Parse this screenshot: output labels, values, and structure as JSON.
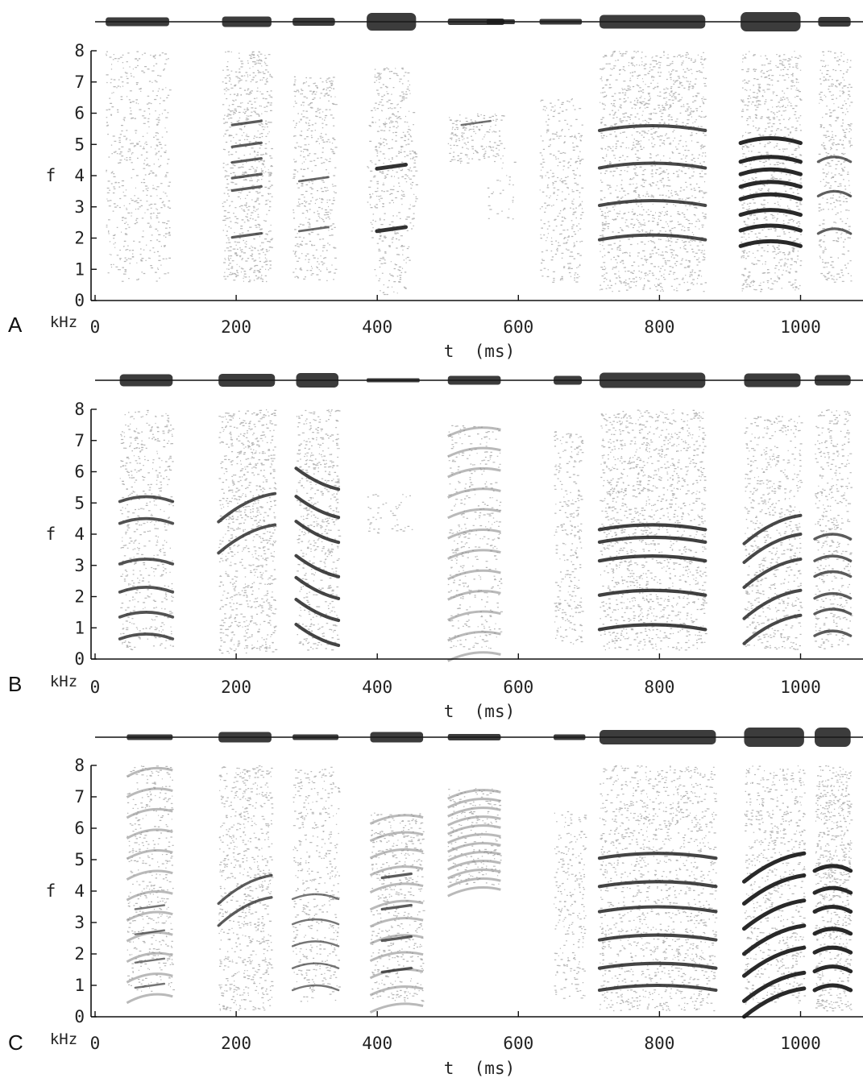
{
  "chart_data": [
    {
      "type": "heatmap",
      "panel_label": "A",
      "xlabel": "t  (ms)",
      "ylabel": "f",
      "yunit": "kHz",
      "xlim": [
        0,
        1100
      ],
      "ylim": [
        0,
        8
      ],
      "xticks": [
        0,
        200,
        400,
        600,
        800,
        1000
      ],
      "yticks": [
        0,
        1,
        2,
        3,
        4,
        5,
        6,
        7,
        8
      ],
      "syllables": [
        {
          "t0": 15,
          "t1": 105,
          "f0": 0.6,
          "f1": 8.0,
          "density": 0.25,
          "shape": "noise",
          "bands": [],
          "amp": 0.35
        },
        {
          "t0": 180,
          "t1": 250,
          "f0": 0.6,
          "f1": 8.0,
          "density": 0.45,
          "shape": "noise",
          "bands": [
            5.7,
            5.0,
            4.5,
            4.0,
            3.6,
            2.1
          ],
          "amp": 0.45
        },
        {
          "t0": 280,
          "t1": 340,
          "f0": 0.6,
          "f1": 7.2,
          "density": 0.35,
          "shape": "noise",
          "bands": [
            3.9,
            2.3
          ],
          "amp": 0.3
        },
        {
          "t0": 385,
          "t1": 455,
          "f0": 0.2,
          "f1": 7.5,
          "density": 0.35,
          "shape": "click",
          "bands": [
            4.3,
            2.3
          ],
          "amp": 0.9
        },
        {
          "t0": 500,
          "t1": 580,
          "f0": 4.4,
          "f1": 6.0,
          "density": 0.45,
          "shape": "noise",
          "bands": [
            5.7
          ],
          "amp": 0.2
        },
        {
          "t0": 555,
          "t1": 595,
          "f0": 2.6,
          "f1": 4.5,
          "density": 0.12,
          "shape": "noise",
          "bands": [],
          "amp": 0.1
        },
        {
          "t0": 630,
          "t1": 690,
          "f0": 0.6,
          "f1": 6.5,
          "density": 0.3,
          "shape": "noise",
          "bands": [],
          "amp": 0.15
        },
        {
          "t0": 715,
          "t1": 865,
          "f0": 0.3,
          "f1": 8.0,
          "density": 0.4,
          "shape": "harmonic",
          "bands": [
            5.6,
            4.4,
            3.2,
            2.1
          ],
          "amp": 0.65
        },
        {
          "t0": 915,
          "t1": 1000,
          "f0": 0.3,
          "f1": 8.0,
          "density": 0.4,
          "shape": "harmonic",
          "bands": [
            5.2,
            4.6,
            4.2,
            3.8,
            3.4,
            2.9,
            2.4,
            1.9
          ],
          "amp": 1.0
        },
        {
          "t0": 1025,
          "t1": 1071,
          "f0": 0.6,
          "f1": 8.0,
          "density": 0.35,
          "shape": "harmonic",
          "bands": [
            4.6,
            3.5,
            2.3
          ],
          "amp": 0.4
        }
      ]
    },
    {
      "type": "heatmap",
      "panel_label": "B",
      "xlabel": "t  (ms)",
      "ylabel": "f",
      "yunit": "kHz",
      "xlim": [
        0,
        1100
      ],
      "ylim": [
        0,
        8
      ],
      "xticks": [
        0,
        200,
        400,
        600,
        800,
        1000
      ],
      "yticks": [
        0,
        1,
        2,
        3,
        4,
        5,
        6,
        7,
        8
      ],
      "syllables": [
        {
          "t0": 35,
          "t1": 110,
          "f0": 0.3,
          "f1": 8.0,
          "density": 0.3,
          "shape": "harmonic",
          "bands": [
            5.2,
            4.5,
            3.2,
            2.3,
            1.5,
            0.8
          ],
          "amp": 0.55
        },
        {
          "t0": 175,
          "t1": 255,
          "f0": 0.2,
          "f1": 8.0,
          "density": 0.45,
          "shape": "sweep-up",
          "bands": [
            5.3,
            4.3
          ],
          "amp": 0.6
        },
        {
          "t0": 285,
          "t1": 345,
          "f0": 0.3,
          "f1": 8.0,
          "density": 0.4,
          "shape": "sweep-down",
          "bands": [
            5.8,
            4.9,
            4.1,
            3.0,
            2.3,
            1.6,
            0.8
          ],
          "amp": 0.7
        },
        {
          "t0": 385,
          "t1": 460,
          "f0": 4.0,
          "f1": 5.3,
          "density": 0.15,
          "shape": "noise",
          "bands": [],
          "amp": 0.05
        },
        {
          "t0": 500,
          "t1": 575,
          "f0": 0.3,
          "f1": 7.5,
          "density": 0.25,
          "shape": "fan",
          "bands": [],
          "amp": 0.35
        },
        {
          "t0": 650,
          "t1": 690,
          "f0": 0.5,
          "f1": 7.3,
          "density": 0.35,
          "shape": "noise",
          "bands": [],
          "amp": 0.35
        },
        {
          "t0": 715,
          "t1": 865,
          "f0": 0.3,
          "f1": 8.0,
          "density": 0.4,
          "shape": "harmonic",
          "bands": [
            4.3,
            3.9,
            3.3,
            2.2,
            1.1
          ],
          "amp": 0.75
        },
        {
          "t0": 920,
          "t1": 1000,
          "f0": 0.3,
          "f1": 7.8,
          "density": 0.35,
          "shape": "sweep-up",
          "bands": [
            4.6,
            4.0,
            3.2,
            2.2,
            1.4
          ],
          "amp": 0.65
        },
        {
          "t0": 1020,
          "t1": 1071,
          "f0": 0.3,
          "f1": 8.0,
          "density": 0.35,
          "shape": "harmonic",
          "bands": [
            4.0,
            3.3,
            2.8,
            2.1,
            1.6,
            0.9
          ],
          "amp": 0.45
        }
      ]
    },
    {
      "type": "heatmap",
      "panel_label": "C",
      "xlabel": "t  (ms)",
      "ylabel": "f",
      "yunit": "kHz",
      "xlim": [
        0,
        1100
      ],
      "ylim": [
        0,
        8
      ],
      "xticks": [
        0,
        200,
        400,
        600,
        800,
        1000
      ],
      "yticks": [
        0,
        1,
        2,
        3,
        4,
        5,
        6,
        7,
        8
      ],
      "syllables": [
        {
          "t0": 45,
          "t1": 110,
          "f0": 0.8,
          "f1": 8.0,
          "density": 0.3,
          "shape": "fan",
          "bands": [
            1.0,
            1.8,
            2.7,
            3.5
          ],
          "amp": 0.15
        },
        {
          "t0": 175,
          "t1": 250,
          "f0": 0.2,
          "f1": 8.0,
          "density": 0.4,
          "shape": "sweep-up",
          "bands": [
            4.5,
            3.8
          ],
          "amp": 0.45
        },
        {
          "t0": 280,
          "t1": 345,
          "f0": 0.5,
          "f1": 8.0,
          "density": 0.3,
          "shape": "harmonic",
          "bands": [
            3.9,
            3.1,
            2.4,
            1.7,
            1.0
          ],
          "amp": 0.15
        },
        {
          "t0": 390,
          "t1": 465,
          "f0": 0.5,
          "f1": 6.5,
          "density": 0.35,
          "shape": "fan",
          "bands": [
            4.5,
            3.5,
            2.5,
            1.5
          ],
          "amp": 0.45
        },
        {
          "t0": 500,
          "t1": 575,
          "f0": 4.2,
          "f1": 7.3,
          "density": 0.3,
          "shape": "fan",
          "bands": [],
          "amp": 0.2
        },
        {
          "t0": 650,
          "t1": 695,
          "f0": 0.6,
          "f1": 6.6,
          "density": 0.3,
          "shape": "noise",
          "bands": [],
          "amp": 0.15
        },
        {
          "t0": 715,
          "t1": 880,
          "f0": 0.2,
          "f1": 8.0,
          "density": 0.35,
          "shape": "harmonic",
          "bands": [
            5.2,
            4.3,
            3.5,
            2.6,
            1.7,
            1.0
          ],
          "amp": 0.7
        },
        {
          "t0": 920,
          "t1": 1005,
          "f0": 0.4,
          "f1": 8.0,
          "density": 0.35,
          "shape": "sweep-up",
          "bands": [
            5.2,
            4.5,
            3.7,
            2.9,
            2.2,
            1.4,
            0.9
          ],
          "amp": 1.0
        },
        {
          "t0": 1020,
          "t1": 1071,
          "f0": 0.2,
          "f1": 8.0,
          "density": 0.55,
          "shape": "harmonic",
          "bands": [
            4.8,
            4.1,
            3.5,
            2.8,
            2.2,
            1.6,
            1.0
          ],
          "amp": 1.0
        }
      ]
    }
  ]
}
